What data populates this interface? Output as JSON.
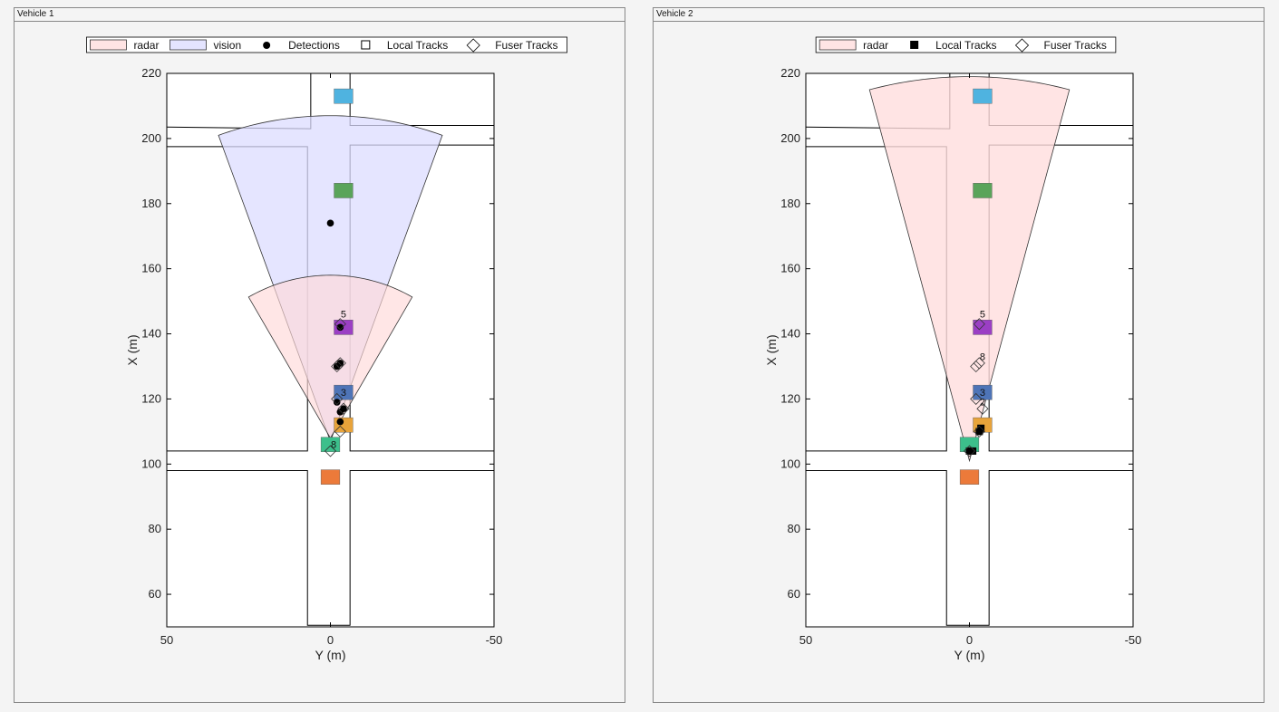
{
  "panels": [
    {
      "title": "Vehicle 1",
      "legend": [
        {
          "label": "radar",
          "kind": "patch",
          "fill": "#ffe4e4"
        },
        {
          "label": "vision",
          "kind": "patch",
          "fill": "#e4e4ff"
        },
        {
          "label": "Detections",
          "kind": "dot"
        },
        {
          "label": "Local Tracks",
          "kind": "square-open"
        },
        {
          "label": "Fuser Tracks",
          "kind": "diamond"
        }
      ]
    },
    {
      "title": "Vehicle 2",
      "legend": [
        {
          "label": "radar",
          "kind": "patch",
          "fill": "#ffe4e4"
        },
        {
          "label": "Local Tracks",
          "kind": "square-filled"
        },
        {
          "label": "Fuser Tracks",
          "kind": "diamond"
        }
      ]
    }
  ],
  "chart_data": [
    {
      "type": "scatter",
      "title": "",
      "xlabel": "Y (m)",
      "ylabel": "X (m)",
      "xlim": [
        50,
        -50
      ],
      "ylim": [
        50,
        220
      ],
      "xticks": [
        50,
        0,
        -50
      ],
      "yticks": [
        60,
        80,
        100,
        120,
        140,
        160,
        180,
        200,
        220
      ],
      "coverage": [
        {
          "name": "vision",
          "origin": [
            0,
            107
          ],
          "range": 100,
          "half_angle_deg": 20,
          "fill": "#dcdcff",
          "opacity": 0.75
        },
        {
          "name": "radar",
          "origin": [
            0,
            108
          ],
          "range": 50,
          "half_angle_deg": 30,
          "fill": "#ffd9d9",
          "opacity": 0.65
        }
      ],
      "vehicles": [
        {
          "y": -4,
          "x": 213,
          "w": 1.8,
          "l": 4.5,
          "color": "#4fb3e0"
        },
        {
          "y": -4,
          "x": 184,
          "w": 1.8,
          "l": 4.5,
          "color": "#5aa45a"
        },
        {
          "y": -4,
          "x": 142,
          "w": 1.8,
          "l": 4.5,
          "color": "#9b3fc4"
        },
        {
          "y": -4,
          "x": 122,
          "w": 1.8,
          "l": 4.5,
          "color": "#4e74b7"
        },
        {
          "y": -4,
          "x": 112,
          "w": 1.8,
          "l": 4.5,
          "color": "#e8a33a"
        },
        {
          "y": 0,
          "x": 106,
          "w": 1.8,
          "l": 4.5,
          "color": "#3cbf8b"
        },
        {
          "y": 0,
          "x": 96,
          "w": 1.8,
          "l": 4.5,
          "color": "#ec7a3a"
        }
      ],
      "detections": [
        {
          "y": 0,
          "x": 174
        },
        {
          "y": -3,
          "x": 142
        },
        {
          "y": -3,
          "x": 131
        },
        {
          "y": -2,
          "x": 130
        },
        {
          "y": -2,
          "x": 119
        },
        {
          "y": -3,
          "x": 116
        },
        {
          "y": -3,
          "x": 113
        },
        {
          "y": -4,
          "x": 117
        }
      ],
      "fuser_tracks": [
        {
          "y": -3,
          "x": 143
        },
        {
          "y": -3,
          "x": 131
        },
        {
          "y": -2,
          "x": 130
        },
        {
          "y": -2,
          "x": 120
        },
        {
          "y": -4,
          "x": 117
        },
        {
          "y": -3,
          "x": 110
        },
        {
          "y": 0,
          "x": 104
        }
      ],
      "track_labels": [
        {
          "text": "5",
          "y": -4,
          "x": 145
        },
        {
          "text": "3",
          "y": -4,
          "x": 121
        },
        {
          "text": "8",
          "y": -1,
          "x": 105
        }
      ]
    },
    {
      "type": "scatter",
      "title": "",
      "xlabel": "Y (m)",
      "ylabel": "X (m)",
      "xlim": [
        50,
        -50
      ],
      "ylim": [
        50,
        220
      ],
      "xticks": [
        50,
        0,
        -50
      ],
      "yticks": [
        60,
        80,
        100,
        120,
        140,
        160,
        180,
        200,
        220
      ],
      "coverage": [
        {
          "name": "radar",
          "origin": [
            0,
            101
          ],
          "range": 118,
          "half_angle_deg": 15,
          "fill": "#ffdddd",
          "opacity": 0.8
        }
      ],
      "vehicles": [
        {
          "y": -4,
          "x": 213,
          "w": 1.8,
          "l": 4.5,
          "color": "#4fb3e0"
        },
        {
          "y": -4,
          "x": 184,
          "w": 1.8,
          "l": 4.5,
          "color": "#5aa45a"
        },
        {
          "y": -4,
          "x": 142,
          "w": 1.8,
          "l": 4.5,
          "color": "#9b3fc4"
        },
        {
          "y": -4,
          "x": 122,
          "w": 1.8,
          "l": 4.5,
          "color": "#4e74b7"
        },
        {
          "y": -4,
          "x": 112,
          "w": 1.8,
          "l": 4.5,
          "color": "#e8a33a"
        },
        {
          "y": 0,
          "x": 106,
          "w": 1.8,
          "l": 4.5,
          "color": "#3cbf8b"
        },
        {
          "y": 0,
          "x": 96,
          "w": 1.8,
          "l": 4.5,
          "color": "#ec7a3a"
        }
      ],
      "local_tracks": [
        {
          "y": 0,
          "x": 104
        },
        {
          "y": -1,
          "x": 104
        },
        {
          "y": -3,
          "x": 110
        },
        {
          "y": -3.5,
          "x": 111
        }
      ],
      "fuser_tracks": [
        {
          "y": -3,
          "x": 143
        },
        {
          "y": -3,
          "x": 131
        },
        {
          "y": -2,
          "x": 130
        },
        {
          "y": -2,
          "x": 120
        },
        {
          "y": -4,
          "x": 117
        },
        {
          "y": -3,
          "x": 110
        },
        {
          "y": 0,
          "x": 104
        }
      ],
      "track_labels": [
        {
          "text": "5",
          "y": -4,
          "x": 145
        },
        {
          "text": "8",
          "y": -4,
          "x": 132
        },
        {
          "text": "3",
          "y": -4,
          "x": 121
        },
        {
          "text": "2",
          "y": -4,
          "x": 118
        }
      ]
    }
  ]
}
